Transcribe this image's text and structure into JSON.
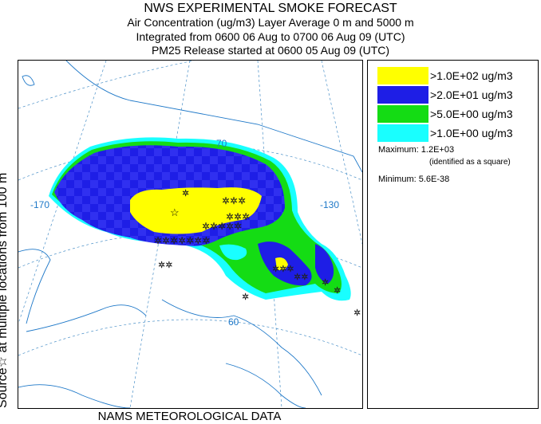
{
  "header": {
    "title": "NWS EXPERIMENTAL SMOKE FORECAST",
    "line1": "Air Concentration (ug/m3) Layer Average    0 m and  5000 m",
    "line2": "Integrated from 0600 06 Aug to 0700 06 Aug 09 (UTC)",
    "line3": "PM25 Release started at 0600 05 Aug 09 (UTC)"
  },
  "side_label": "Source☆   at multiple locations      from   100 m",
  "footer": "NAMS METEOROLOGICAL DATA",
  "map": {
    "lon_labels": [
      "-170",
      "-130"
    ],
    "lat_labels": [
      "70",
      "60"
    ],
    "colors": {
      "land_line": "#000000",
      "water_line": "#1e78c8",
      "grid_line": "#4a90c8"
    }
  },
  "legend": {
    "items": [
      {
        "color": "#ffff00",
        "label": ">1.0E+02 ug/m3"
      },
      {
        "color": "#1e1ee6",
        "label": ">2.0E+01 ug/m3"
      },
      {
        "color": "#14dc14",
        "label": ">5.0E+00 ug/m3"
      },
      {
        "color": "#19ffff",
        "label": ">1.0E+00 ug/m3"
      }
    ],
    "maximum": "Maximum: 1.2E+03",
    "max_note": "(identified as a square)",
    "minimum": "Minimum: 5.6E-38"
  }
}
